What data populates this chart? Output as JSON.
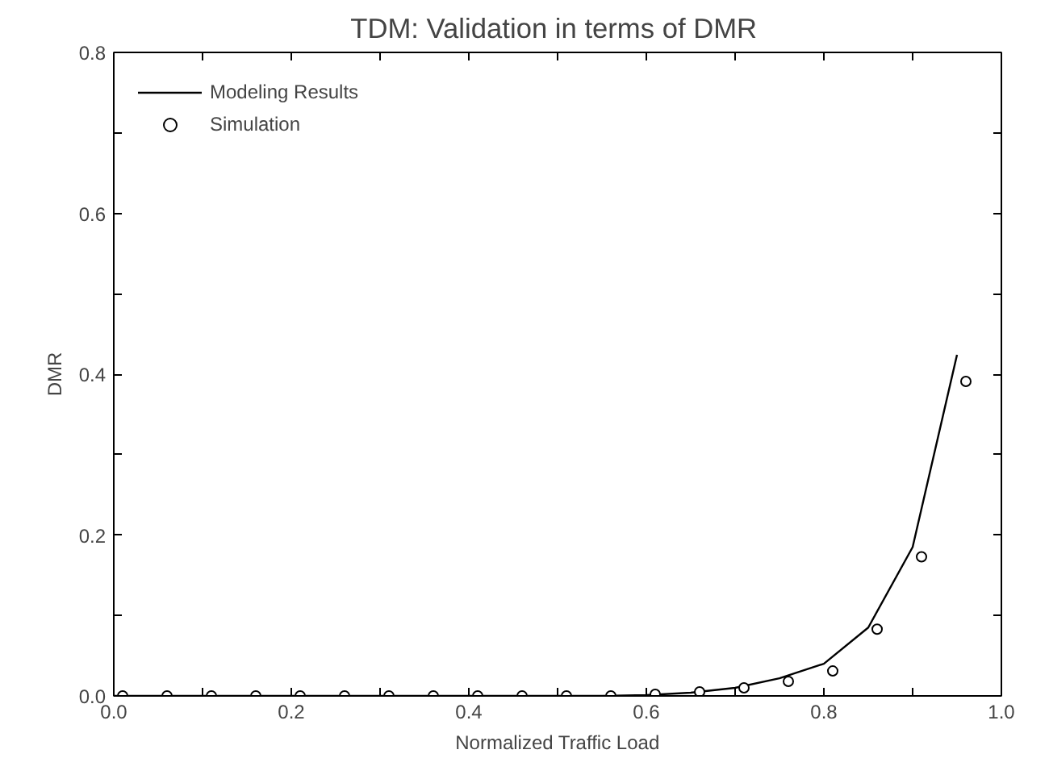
{
  "chart_data": {
    "type": "line",
    "title": "TDM:  Validation in terms of DMR",
    "xlabel": "Normalized Traffic Load",
    "ylabel": "DMR",
    "xlim": [
      0,
      1
    ],
    "ylim": [
      0,
      0.8
    ],
    "xticks": [
      {
        "value": 0,
        "label": "0.0"
      },
      {
        "value": 0.1,
        "label": null
      },
      0.2,
      {
        "value": 0.3,
        "label": null
      },
      0.4,
      {
        "value": 0.5,
        "label": null
      },
      0.6,
      {
        "value": 0.7,
        "label": null
      },
      0.8,
      {
        "value": 0.9,
        "label": null
      },
      {
        "value": 1,
        "label": "1.0"
      }
    ],
    "yticks": [
      {
        "value": 0,
        "label": "0.0"
      },
      {
        "value": 0.1,
        "label": null
      },
      0.2,
      {
        "value": 0.3,
        "label": null
      },
      0.4,
      {
        "value": 0.5,
        "label": null
      },
      0.6,
      {
        "value": 0.7,
        "label": null
      },
      0.8
    ],
    "series": [
      {
        "name": "Modeling Results",
        "color": "#000000",
        "marker": "none",
        "x": [
          0,
          0.05,
          0.1,
          0.15,
          0.2,
          0.25,
          0.3,
          0.35,
          0.4,
          0.45,
          0.5,
          0.55,
          0.6,
          0.65,
          0.7,
          0.75,
          0.8,
          0.85,
          0.9,
          0.95
        ],
        "values": [
          0,
          0,
          0,
          0,
          0,
          0,
          0,
          0,
          0,
          0,
          0,
          0,
          0.001,
          0.004,
          0.01,
          0.022,
          0.04,
          0.085,
          0.185,
          0.424
        ]
      },
      {
        "name": "Simulation",
        "type": "scatter",
        "color": "#000000",
        "marker": "circle",
        "x": [
          0.01,
          0.06,
          0.11,
          0.16,
          0.21,
          0.26,
          0.31,
          0.36,
          0.41,
          0.46,
          0.51,
          0.56,
          0.61,
          0.66,
          0.71,
          0.76,
          0.81,
          0.86,
          0.91,
          0.96
        ],
        "values": [
          0,
          0,
          0,
          0,
          0,
          0,
          0,
          0,
          0,
          0,
          0,
          0,
          0.002,
          0.005,
          0.01,
          0.018,
          0.031,
          0.083,
          0.173,
          0.391
        ]
      }
    ],
    "legend": "top left",
    "grid": false
  }
}
